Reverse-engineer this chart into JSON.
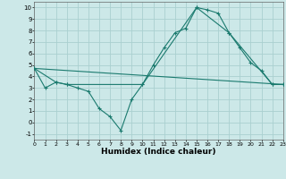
{
  "line1_x": [
    0,
    1,
    2,
    3,
    4,
    5,
    6,
    7,
    8,
    9,
    10,
    11,
    12,
    13,
    14,
    15,
    16,
    17,
    18,
    19,
    20,
    21,
    22,
    23
  ],
  "line1_y": [
    4.7,
    3.0,
    3.5,
    3.3,
    3.0,
    2.7,
    1.2,
    0.5,
    -0.7,
    2.0,
    3.3,
    5.0,
    6.5,
    7.8,
    8.2,
    10.0,
    9.8,
    9.5,
    7.8,
    6.5,
    5.2,
    4.5,
    3.3,
    3.3
  ],
  "line2_x": [
    0,
    2,
    3,
    10,
    15,
    18,
    22,
    23
  ],
  "line2_y": [
    4.7,
    3.5,
    3.3,
    3.3,
    10.0,
    7.8,
    3.3,
    3.3
  ],
  "line3_x": [
    0,
    23
  ],
  "line3_y": [
    4.7,
    3.3
  ],
  "color": "#1a7a6e",
  "bg_color": "#cce8e8",
  "grid_color": "#aad0d0",
  "xlabel": "Humidex (Indice chaleur)",
  "xlim": [
    0,
    23
  ],
  "ylim": [
    -1.5,
    10.5
  ],
  "xticks": [
    0,
    1,
    2,
    3,
    4,
    5,
    6,
    7,
    8,
    9,
    10,
    11,
    12,
    13,
    14,
    15,
    16,
    17,
    18,
    19,
    20,
    21,
    22,
    23
  ],
  "yticks": [
    -1,
    0,
    1,
    2,
    3,
    4,
    5,
    6,
    7,
    8,
    9,
    10
  ],
  "xtick_fontsize": 4.5,
  "ytick_fontsize": 5.0,
  "xlabel_fontsize": 6.5
}
